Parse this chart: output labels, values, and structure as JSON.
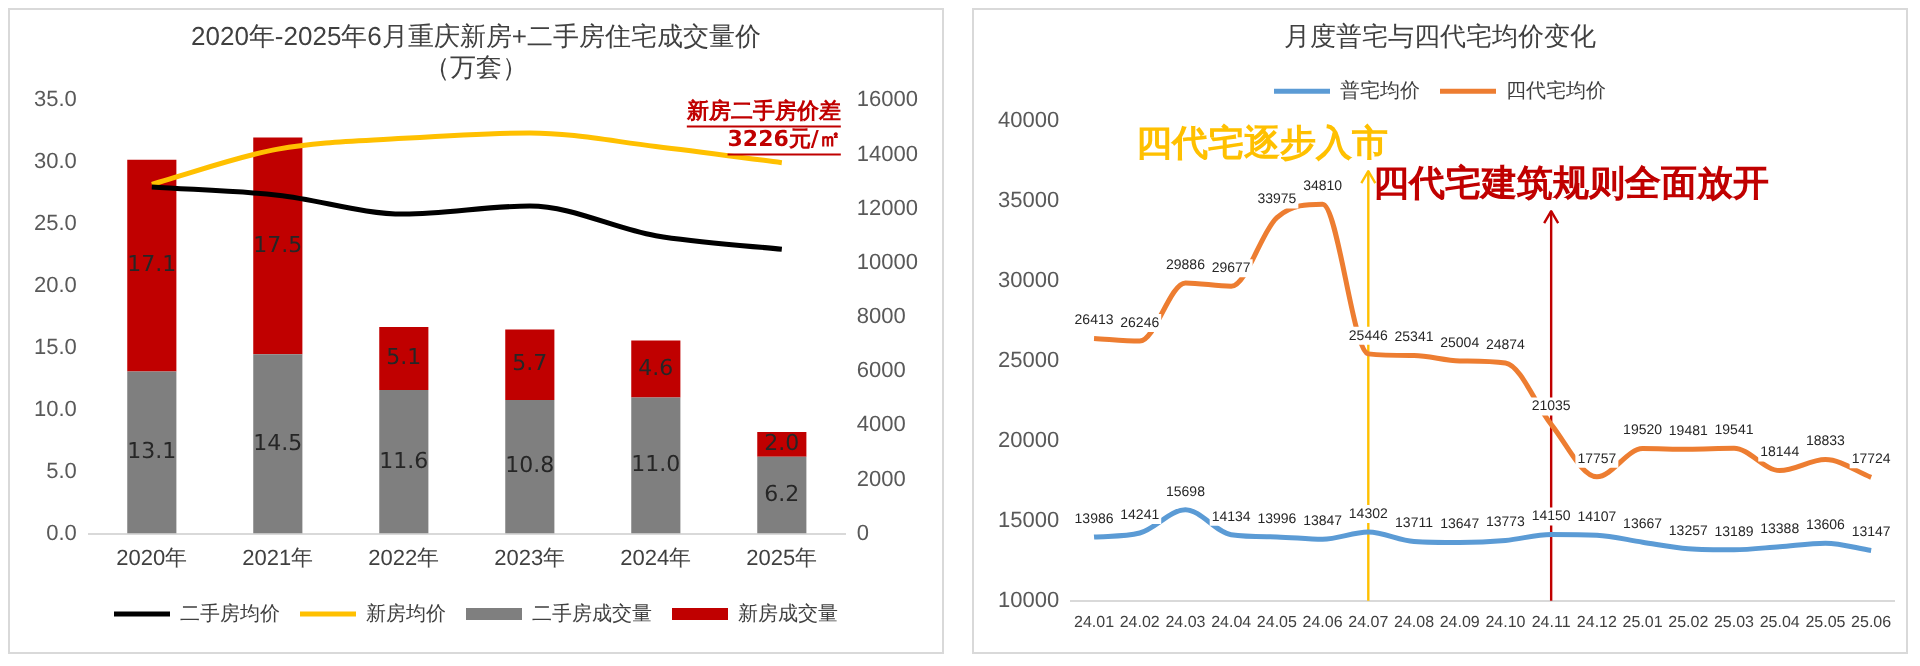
{
  "chart_data": [
    {
      "type": "bar",
      "title": "2020年-2025年6月重庆新房+二手房住宅成交量价",
      "subtitle": "（万套）",
      "categories": [
        "2020年",
        "2021年",
        "2022年",
        "2023年",
        "2024年",
        "2025年"
      ],
      "stacked": true,
      "series": [
        {
          "name": "二手房成交量",
          "color": "#7f7f7f",
          "values": [
            13.1,
            14.5,
            11.6,
            10.8,
            11.0,
            6.2
          ],
          "value_labels": [
            "13.1",
            "14.5",
            "11.6",
            "10.8",
            "11.0",
            "6.2"
          ]
        },
        {
          "name": "新房成交量",
          "color": "#c00000",
          "values": [
            17.1,
            17.5,
            5.1,
            5.7,
            4.6,
            2.0
          ],
          "value_labels": [
            "17.1",
            "17.5",
            "5.1",
            "5.7",
            "4.6",
            "2.0"
          ]
        },
        {
          "name": "二手房均价",
          "type": "line",
          "axis": "y2",
          "color": "#000000",
          "values": [
            12800,
            12500,
            11800,
            12100,
            11000,
            10500
          ]
        },
        {
          "name": "新房均价",
          "type": "line",
          "axis": "y2",
          "color": "#ffc000",
          "values": [
            12900,
            14200,
            14600,
            14800,
            14300,
            13700
          ]
        }
      ],
      "ylim": [
        0,
        35
      ],
      "yticks": [
        {
          "value": 0,
          "label": "0.0"
        },
        {
          "value": 5,
          "label": "5.0"
        },
        {
          "value": 10,
          "label": "10.0"
        },
        {
          "value": 15,
          "label": "15.0"
        },
        {
          "value": 20,
          "label": "20.0"
        },
        {
          "value": 25,
          "label": "25.0"
        },
        {
          "value": 30,
          "label": "30.0"
        },
        {
          "value": 35,
          "label": "35.0"
        }
      ],
      "y2lim": [
        0,
        16000
      ],
      "y2ticks": [
        0,
        2000,
        4000,
        6000,
        8000,
        10000,
        12000,
        14000,
        16000
      ],
      "legend": "bottom",
      "marker": "none",
      "annotations": [
        "新房二手房价差 3226元/㎡"
      ]
    },
    {
      "type": "line",
      "title": "月度普宅与四代宅均价变化",
      "categories": [
        "24.01",
        "24.02",
        "24.03",
        "24.04",
        "24.05",
        "24.06",
        "24.07",
        "24.08",
        "24.09",
        "24.10",
        "24.11",
        "24.12",
        "25.01",
        "25.02",
        "25.03",
        "25.04",
        "25.05",
        "25.06"
      ],
      "series": [
        {
          "name": "普宅均价",
          "color": "#5b9bd5",
          "values": [
            13986,
            14241,
            15698,
            14134,
            13996,
            13847,
            14302,
            13711,
            13647,
            13773,
            14150,
            14107,
            13667,
            13257,
            13189,
            13388,
            13606,
            13147
          ]
        },
        {
          "name": "四代宅均价",
          "color": "#ed7d31",
          "values": [
            26413,
            26246,
            29886,
            29677,
            33975,
            34810,
            25446,
            25341,
            25004,
            24874,
            21035,
            17757,
            19520,
            19481,
            19541,
            18144,
            18833,
            17724
          ]
        }
      ],
      "ylim": [
        10000,
        40000
      ],
      "yticks": [
        10000,
        15000,
        20000,
        25000,
        30000,
        35000,
        40000
      ],
      "data_labels": true,
      "legend": "top",
      "marker": "none",
      "ref_lines": [
        {
          "axis": "x",
          "value": "24.07",
          "label": "四代宅逐步入市",
          "color": "#ffc000"
        },
        {
          "axis": "x",
          "value": "24.11",
          "label": "四代宅建筑规则全面放开",
          "color": "#c00000"
        }
      ]
    }
  ]
}
